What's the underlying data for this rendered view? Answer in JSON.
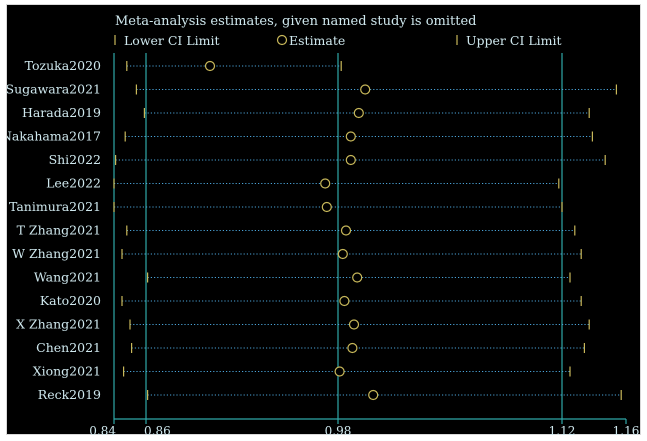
{
  "chart_data": {
    "type": "forest",
    "title": "Meta-analysis estimates, given named study is omitted",
    "legend": [
      {
        "name": "Lower CI Limit",
        "marker": "tick",
        "color": "#c8b85a"
      },
      {
        "name": "Estimate",
        "marker": "circle",
        "color": "#c8b85a"
      },
      {
        "name": "Upper CI Limit",
        "marker": "tick",
        "color": "#c8b85a"
      }
    ],
    "legend_position": "top",
    "x_ticks": [
      "0.84",
      "0.86",
      "0.98",
      "1.12",
      "1.16"
    ],
    "x_tick_values": [
      0.84,
      0.86,
      0.98,
      1.12,
      1.16
    ],
    "xlim": [
      0.84,
      1.16
    ],
    "reference_lines": [
      0.86,
      0.98,
      1.12
    ],
    "studies": [
      {
        "name": "Tozuka2020",
        "lower": 0.848,
        "estimate": 0.9,
        "upper": 0.982
      },
      {
        "name": "Sugawara2021",
        "lower": 0.854,
        "estimate": 0.997,
        "upper": 1.154
      },
      {
        "name": "Harada2019",
        "lower": 0.859,
        "estimate": 0.993,
        "upper": 1.137
      },
      {
        "name": "Nakahama2017",
        "lower": 0.847,
        "estimate": 0.988,
        "upper": 1.139
      },
      {
        "name": "Shi2022",
        "lower": 0.841,
        "estimate": 0.988,
        "upper": 1.147
      },
      {
        "name": "Lee2022",
        "lower": 0.84,
        "estimate": 0.972,
        "upper": 1.118
      },
      {
        "name": "Tanimura2021",
        "lower": 0.84,
        "estimate": 0.973,
        "upper": 1.12
      },
      {
        "name": "T Zhang2021",
        "lower": 0.848,
        "estimate": 0.985,
        "upper": 1.128
      },
      {
        "name": "W Zhang2021",
        "lower": 0.845,
        "estimate": 0.983,
        "upper": 1.132
      },
      {
        "name": "Wang2021",
        "lower": 0.861,
        "estimate": 0.992,
        "upper": 1.125
      },
      {
        "name": "Kato2020",
        "lower": 0.845,
        "estimate": 0.984,
        "upper": 1.132
      },
      {
        "name": "X Zhang2021",
        "lower": 0.85,
        "estimate": 0.99,
        "upper": 1.137
      },
      {
        "name": "Chen2021",
        "lower": 0.851,
        "estimate": 0.989,
        "upper": 1.134
      },
      {
        "name": "Xiong2021",
        "lower": 0.846,
        "estimate": 0.981,
        "upper": 1.125
      },
      {
        "name": "Reck2019",
        "lower": 0.861,
        "estimate": 1.002,
        "upper": 1.157
      }
    ]
  },
  "colors": {
    "background": "#000000",
    "axis": "#2fa8a8",
    "text": "#cfe8ee",
    "marker": "#c8b85a",
    "dotted": "#4aa3d8"
  }
}
